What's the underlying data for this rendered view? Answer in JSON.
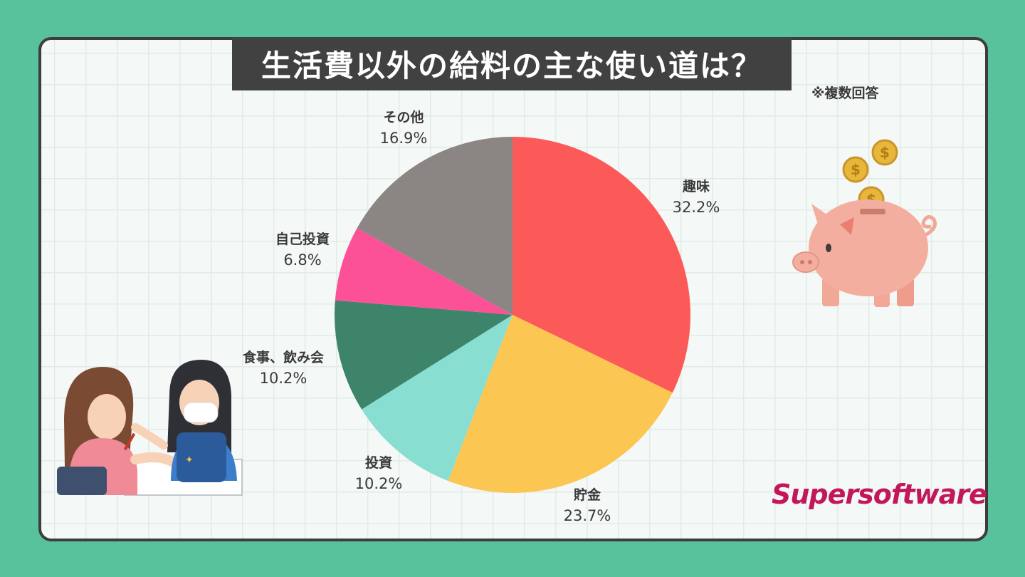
{
  "title": "生活費以外の給料の主な使い道は？",
  "note": "※複数回答",
  "brand": "Supersoftware",
  "colors": {
    "background": "#57c29b",
    "banner": "#414141",
    "brand": "#c2185b"
  },
  "chart_data": {
    "type": "pie",
    "title": "生活費以外の給料の主な使い道は？",
    "slices": [
      {
        "label": "趣味",
        "value": 32.2,
        "pct_label": "32.2%",
        "color": "#fc5a59"
      },
      {
        "label": "貯金",
        "value": 23.7,
        "pct_label": "23.7%",
        "color": "#fcc653"
      },
      {
        "label": "投資",
        "value": 10.2,
        "pct_label": "10.2%",
        "color": "#87ded1"
      },
      {
        "label": "食事、飲み会",
        "value": 10.2,
        "pct_label": "10.2%",
        "color": "#3d846b"
      },
      {
        "label": "自己投資",
        "value": 6.8,
        "pct_label": "6.8%",
        "color": "#fc5196"
      },
      {
        "label": "その他",
        "value": 16.9,
        "pct_label": "16.9%",
        "color": "#8b8683"
      }
    ],
    "start_angle": "12 o'clock",
    "direction": "clockwise"
  }
}
